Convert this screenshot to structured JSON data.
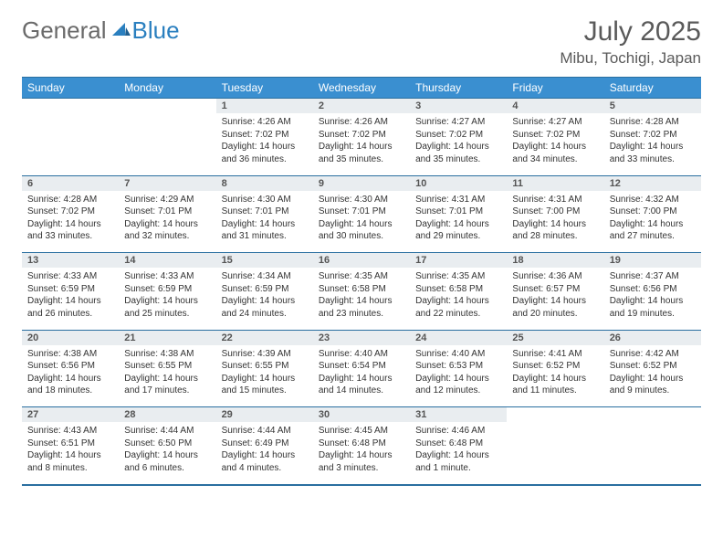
{
  "logo": {
    "part1": "General",
    "part2": "Blue"
  },
  "title": "July 2025",
  "location": "Mibu, Tochigi, Japan",
  "colors": {
    "header_bg": "#3a8fd0",
    "header_border": "#2a6fa0",
    "daynum_bg": "#e9edf0",
    "text": "#333333",
    "logo_gray": "#6a6a6a",
    "logo_blue": "#2a7fbf"
  },
  "weekdays": [
    "Sunday",
    "Monday",
    "Tuesday",
    "Wednesday",
    "Thursday",
    "Friday",
    "Saturday"
  ],
  "weeks": [
    {
      "nums": [
        "",
        "",
        "1",
        "2",
        "3",
        "4",
        "5"
      ],
      "cells": [
        null,
        null,
        {
          "sunrise": "4:26 AM",
          "sunset": "7:02 PM",
          "daylight": "14 hours and 36 minutes."
        },
        {
          "sunrise": "4:26 AM",
          "sunset": "7:02 PM",
          "daylight": "14 hours and 35 minutes."
        },
        {
          "sunrise": "4:27 AM",
          "sunset": "7:02 PM",
          "daylight": "14 hours and 35 minutes."
        },
        {
          "sunrise": "4:27 AM",
          "sunset": "7:02 PM",
          "daylight": "14 hours and 34 minutes."
        },
        {
          "sunrise": "4:28 AM",
          "sunset": "7:02 PM",
          "daylight": "14 hours and 33 minutes."
        }
      ]
    },
    {
      "nums": [
        "6",
        "7",
        "8",
        "9",
        "10",
        "11",
        "12"
      ],
      "cells": [
        {
          "sunrise": "4:28 AM",
          "sunset": "7:02 PM",
          "daylight": "14 hours and 33 minutes."
        },
        {
          "sunrise": "4:29 AM",
          "sunset": "7:01 PM",
          "daylight": "14 hours and 32 minutes."
        },
        {
          "sunrise": "4:30 AM",
          "sunset": "7:01 PM",
          "daylight": "14 hours and 31 minutes."
        },
        {
          "sunrise": "4:30 AM",
          "sunset": "7:01 PM",
          "daylight": "14 hours and 30 minutes."
        },
        {
          "sunrise": "4:31 AM",
          "sunset": "7:01 PM",
          "daylight": "14 hours and 29 minutes."
        },
        {
          "sunrise": "4:31 AM",
          "sunset": "7:00 PM",
          "daylight": "14 hours and 28 minutes."
        },
        {
          "sunrise": "4:32 AM",
          "sunset": "7:00 PM",
          "daylight": "14 hours and 27 minutes."
        }
      ]
    },
    {
      "nums": [
        "13",
        "14",
        "15",
        "16",
        "17",
        "18",
        "19"
      ],
      "cells": [
        {
          "sunrise": "4:33 AM",
          "sunset": "6:59 PM",
          "daylight": "14 hours and 26 minutes."
        },
        {
          "sunrise": "4:33 AM",
          "sunset": "6:59 PM",
          "daylight": "14 hours and 25 minutes."
        },
        {
          "sunrise": "4:34 AM",
          "sunset": "6:59 PM",
          "daylight": "14 hours and 24 minutes."
        },
        {
          "sunrise": "4:35 AM",
          "sunset": "6:58 PM",
          "daylight": "14 hours and 23 minutes."
        },
        {
          "sunrise": "4:35 AM",
          "sunset": "6:58 PM",
          "daylight": "14 hours and 22 minutes."
        },
        {
          "sunrise": "4:36 AM",
          "sunset": "6:57 PM",
          "daylight": "14 hours and 20 minutes."
        },
        {
          "sunrise": "4:37 AM",
          "sunset": "6:56 PM",
          "daylight": "14 hours and 19 minutes."
        }
      ]
    },
    {
      "nums": [
        "20",
        "21",
        "22",
        "23",
        "24",
        "25",
        "26"
      ],
      "cells": [
        {
          "sunrise": "4:38 AM",
          "sunset": "6:56 PM",
          "daylight": "14 hours and 18 minutes."
        },
        {
          "sunrise": "4:38 AM",
          "sunset": "6:55 PM",
          "daylight": "14 hours and 17 minutes."
        },
        {
          "sunrise": "4:39 AM",
          "sunset": "6:55 PM",
          "daylight": "14 hours and 15 minutes."
        },
        {
          "sunrise": "4:40 AM",
          "sunset": "6:54 PM",
          "daylight": "14 hours and 14 minutes."
        },
        {
          "sunrise": "4:40 AM",
          "sunset": "6:53 PM",
          "daylight": "14 hours and 12 minutes."
        },
        {
          "sunrise": "4:41 AM",
          "sunset": "6:52 PM",
          "daylight": "14 hours and 11 minutes."
        },
        {
          "sunrise": "4:42 AM",
          "sunset": "6:52 PM",
          "daylight": "14 hours and 9 minutes."
        }
      ]
    },
    {
      "nums": [
        "27",
        "28",
        "29",
        "30",
        "31",
        "",
        ""
      ],
      "cells": [
        {
          "sunrise": "4:43 AM",
          "sunset": "6:51 PM",
          "daylight": "14 hours and 8 minutes."
        },
        {
          "sunrise": "4:44 AM",
          "sunset": "6:50 PM",
          "daylight": "14 hours and 6 minutes."
        },
        {
          "sunrise": "4:44 AM",
          "sunset": "6:49 PM",
          "daylight": "14 hours and 4 minutes."
        },
        {
          "sunrise": "4:45 AM",
          "sunset": "6:48 PM",
          "daylight": "14 hours and 3 minutes."
        },
        {
          "sunrise": "4:46 AM",
          "sunset": "6:48 PM",
          "daylight": "14 hours and 1 minute."
        },
        null,
        null
      ]
    }
  ],
  "labels": {
    "sunrise": "Sunrise: ",
    "sunset": "Sunset: ",
    "daylight": "Daylight: "
  }
}
